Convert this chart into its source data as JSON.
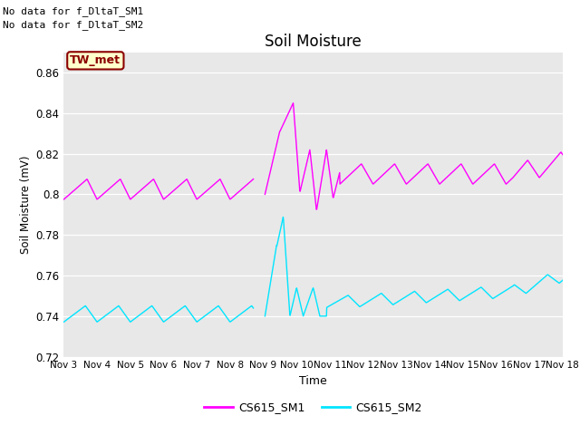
{
  "title": "Soil Moisture",
  "xlabel": "Time",
  "ylabel": "Soil Moisture (mV)",
  "ylim": [
    0.72,
    0.87
  ],
  "xlim": [
    0,
    15
  ],
  "yticks": [
    0.72,
    0.74,
    0.76,
    0.78,
    0.8,
    0.82,
    0.84,
    0.86
  ],
  "annotations": [
    "No data for f_DltaT_SM1",
    "No data for f_DltaT_SM2"
  ],
  "legend_label1": "CS615_SM1",
  "legend_label2": "CS615_SM2",
  "legend_box_label": "TW_met",
  "legend_box_bg": "#ffffcc",
  "legend_box_border": "#8b0000",
  "legend_box_text": "#8b0000",
  "color1": "#ff00ff",
  "color2": "#00e5ff",
  "bg_color": "#e8e8e8",
  "tick_labels": [
    "Nov 3",
    "Nov 4",
    "Nov 5",
    "Nov 6",
    "Nov 7",
    "Nov 8",
    "Nov 9",
    "Nov 10",
    "Nov 11",
    "Nov 12",
    "Nov 13",
    "Nov 14",
    "Nov 15",
    "Nov 16",
    "Nov 17",
    "Nov 18"
  ],
  "tick_positions": [
    0,
    1,
    2,
    3,
    4,
    5,
    6,
    7,
    8,
    9,
    10,
    11,
    12,
    13,
    14,
    15
  ]
}
